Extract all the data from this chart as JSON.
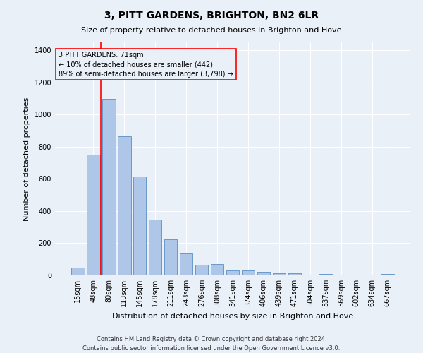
{
  "title": "3, PITT GARDENS, BRIGHTON, BN2 6LR",
  "subtitle": "Size of property relative to detached houses in Brighton and Hove",
  "xlabel": "Distribution of detached houses by size in Brighton and Hove",
  "ylabel": "Number of detached properties",
  "footer1": "Contains HM Land Registry data © Crown copyright and database right 2024.",
  "footer2": "Contains public sector information licensed under the Open Government Licence v3.0.",
  "categories": [
    "15sqm",
    "48sqm",
    "80sqm",
    "113sqm",
    "145sqm",
    "178sqm",
    "211sqm",
    "243sqm",
    "276sqm",
    "308sqm",
    "341sqm",
    "374sqm",
    "406sqm",
    "439sqm",
    "471sqm",
    "504sqm",
    "537sqm",
    "569sqm",
    "602sqm",
    "634sqm",
    "667sqm"
  ],
  "values": [
    50,
    750,
    1100,
    865,
    615,
    345,
    225,
    135,
    65,
    70,
    30,
    30,
    20,
    15,
    15,
    0,
    10,
    0,
    0,
    0,
    10
  ],
  "bar_color": "#aec6e8",
  "bar_edge_color": "#5a8fc2",
  "annotation_line1": "3 PITT GARDENS: 71sqm",
  "annotation_line2": "← 10% of detached houses are smaller (442)",
  "annotation_line3": "89% of semi-detached houses are larger (3,798) →",
  "vline_x_index": 1.5,
  "vline_color": "red",
  "box_color": "red",
  "ylim": [
    0,
    1450
  ],
  "yticks": [
    0,
    200,
    400,
    600,
    800,
    1000,
    1200,
    1400
  ],
  "background_color": "#eaf0f8",
  "grid_color": "#ffffff",
  "figsize": [
    6.0,
    5.0
  ],
  "dpi": 100,
  "title_fontsize": 10,
  "subtitle_fontsize": 8,
  "ylabel_fontsize": 8,
  "xlabel_fontsize": 8,
  "tick_fontsize": 7,
  "annotation_fontsize": 7,
  "footer_fontsize": 6
}
